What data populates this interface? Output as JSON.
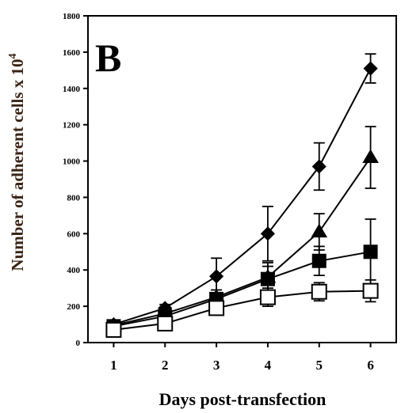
{
  "chart_data": {
    "type": "line",
    "panel_label": "B",
    "xlabel": "Days post-transfection",
    "ylabel": "Number of adherent cells x 10",
    "ylabel_exponent": "4",
    "x": [
      1,
      2,
      3,
      4,
      5,
      6
    ],
    "x_ticks": [
      "1",
      "2",
      "3",
      "4",
      "5",
      "6"
    ],
    "ylim": [
      0,
      1800
    ],
    "y_ticks": [
      "0",
      "200",
      "400",
      "600",
      "800",
      "1000",
      "1200",
      "1400",
      "1600",
      "1800"
    ],
    "grid": false,
    "series": [
      {
        "marker": "diamond",
        "fill": "#000000",
        "values": [
          100,
          190,
          365,
          600,
          970,
          1510
        ],
        "errors": [
          10,
          20,
          100,
          150,
          130,
          80
        ]
      },
      {
        "marker": "triangle",
        "fill": "#000000",
        "values": [
          95,
          160,
          250,
          360,
          610,
          1020
        ],
        "errors": [
          10,
          15,
          40,
          80,
          100,
          170
        ]
      },
      {
        "marker": "square",
        "fill": "#000000",
        "values": [
          90,
          145,
          240,
          350,
          450,
          500
        ],
        "errors": [
          10,
          15,
          35,
          70,
          80,
          180
        ]
      },
      {
        "marker": "square",
        "fill": "#ffffff",
        "values": [
          70,
          105,
          190,
          250,
          280,
          285
        ],
        "errors": [
          10,
          15,
          25,
          50,
          50,
          60
        ]
      }
    ]
  }
}
